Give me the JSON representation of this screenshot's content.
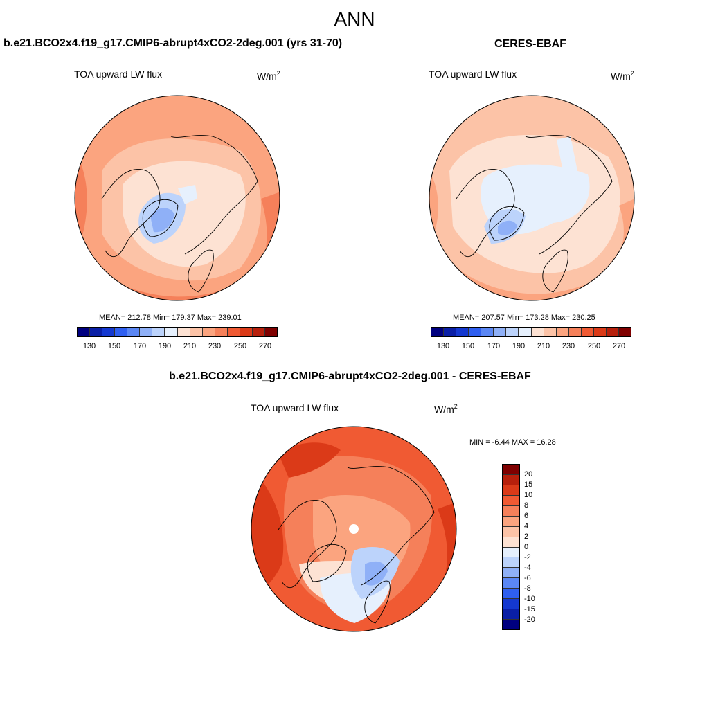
{
  "figure": {
    "title": "ANN"
  },
  "panels": [
    {
      "title": "b.e21.BCO2x4.f19_g17.CMIP6-abrupt4xCO2-2deg.001 (yrs 31-70)",
      "var_label": "TOA upward LW flux",
      "units_base": "W/m",
      "units_exp": "2",
      "stats": "MEAN= 212.78  Min= 179.37  Max= 239.01",
      "mean": 212.78,
      "min": 179.37,
      "max": 239.01
    },
    {
      "title": "CERES-EBAF",
      "var_label": "TOA upward LW flux",
      "units_base": "W/m",
      "units_exp": "2",
      "stats": "MEAN= 207.57  Min= 173.28  Max= 230.25",
      "mean": 207.57,
      "min": 173.28,
      "max": 230.25
    }
  ],
  "diff_panel": {
    "title": "b.e21.BCO2x4.f19_g17.CMIP6-abrupt4xCO2-2deg.001 - CERES-EBAF",
    "var_label": "TOA upward LW flux",
    "units_base": "W/m",
    "units_exp": "2",
    "stats": "MIN =  -6.44 MAX =  16.28",
    "min": -6.44,
    "max": 16.28
  },
  "chart_data": [
    {
      "type": "heatmap",
      "projection": "north-polar-stereographic",
      "title": "b.e21.BCO2x4.f19_g17.CMIP6-abrupt4xCO2-2deg.001 (yrs 31-70)",
      "variable": "TOA upward LW flux",
      "units": "W/m2",
      "colorbar_levels": [
        130,
        150,
        170,
        190,
        210,
        230,
        250,
        270
      ],
      "colorbar_colors": [
        "#00007f",
        "#0a1fa6",
        "#1438d0",
        "#2f5ff0",
        "#5b87f4",
        "#8fb0f7",
        "#bcd3fb",
        "#e6f0fd",
        "#fde2d3",
        "#fcc3a7",
        "#fba47f",
        "#f5805a",
        "#f05a33",
        "#db3a18",
        "#b7200c",
        "#7f0000"
      ],
      "mean": 212.78,
      "min": 179.37,
      "max": 239.01
    },
    {
      "type": "heatmap",
      "projection": "north-polar-stereographic",
      "title": "CERES-EBAF",
      "variable": "TOA upward LW flux",
      "units": "W/m2",
      "colorbar_levels": [
        130,
        150,
        170,
        190,
        210,
        230,
        250,
        270
      ],
      "colorbar_colors": [
        "#00007f",
        "#0a1fa6",
        "#1438d0",
        "#2f5ff0",
        "#5b87f4",
        "#8fb0f7",
        "#bcd3fb",
        "#e6f0fd",
        "#fde2d3",
        "#fcc3a7",
        "#fba47f",
        "#f5805a",
        "#f05a33",
        "#db3a18",
        "#b7200c",
        "#7f0000"
      ],
      "mean": 207.57,
      "min": 173.28,
      "max": 230.25
    },
    {
      "type": "heatmap",
      "projection": "north-polar-stereographic",
      "title": "b.e21.BCO2x4.f19_g17.CMIP6-abrupt4xCO2-2deg.001 - CERES-EBAF",
      "variable": "TOA upward LW flux",
      "units": "W/m2",
      "colorbar_levels": [
        20,
        15,
        10,
        8,
        6,
        4,
        2,
        0,
        -2,
        -4,
        -6,
        -8,
        -10,
        -15,
        -20
      ],
      "colorbar_colors": [
        "#7f0000",
        "#b7200c",
        "#db3a18",
        "#f05a33",
        "#f5805a",
        "#fba47f",
        "#fcc3a7",
        "#fde2d3",
        "#e6f0fd",
        "#bcd3fb",
        "#8fb0f7",
        "#5b87f4",
        "#2f5ff0",
        "#1438d0",
        "#0a1fa6",
        "#00007f"
      ],
      "min": -6.44,
      "max": 16.28
    }
  ],
  "colors": {
    "warm_mid": "#fba47f",
    "warm_light": "#fcc3a7",
    "neutral_warm": "#fde2d3",
    "cool_light": "#e6f0fd",
    "cool_mid": "#bcd3fb",
    "cool_deep": "#8fb0f7",
    "warm_deep": "#f05a33",
    "red_dark": "#db3a18"
  }
}
